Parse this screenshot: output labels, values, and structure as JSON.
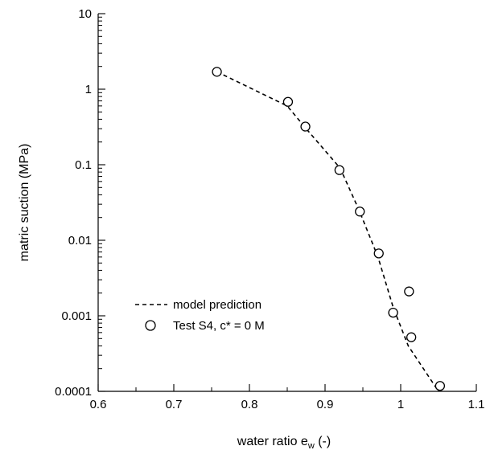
{
  "chart_data": {
    "type": "scatter",
    "xlabel": "water ratio e",
    "xlabel_subscript": "w",
    "xlabel_suffix": " (-)",
    "ylabel": "matric suction (MPa)",
    "xlim": [
      0.6,
      1.1
    ],
    "ylim": [
      0.0001,
      10
    ],
    "yscale": "log",
    "grid": false,
    "legend_position": "lower-left",
    "x_ticks": [
      "0.6",
      "0.7",
      "0.8",
      "0.9",
      "1",
      "1.1"
    ],
    "x_tick_values": [
      0.6,
      0.7,
      0.8,
      0.9,
      1.0,
      1.1
    ],
    "y_ticks": [
      "0.0001",
      "0.001",
      "0.01",
      "0.1",
      "1",
      "10"
    ],
    "y_tick_values": [
      0.0001,
      0.001,
      0.01,
      0.1,
      1,
      10
    ],
    "series": [
      {
        "name": "model prediction",
        "style": "dashed-line",
        "color": "#000000",
        "x": [
          0.757,
          0.85,
          0.875,
          0.92,
          0.945,
          0.97,
          0.99,
          1.01,
          1.05
        ],
        "y": [
          1.7,
          0.6,
          0.3,
          0.09,
          0.025,
          0.006,
          0.0013,
          0.0004,
          0.0001
        ]
      },
      {
        "name": "Test S4, c* = 0 M",
        "style": "open-circle",
        "color": "#000000",
        "x": [
          0.757,
          0.851,
          0.874,
          0.919,
          0.946,
          0.971,
          0.99,
          1.011,
          1.014,
          1.052
        ],
        "y": [
          1.7,
          0.68,
          0.32,
          0.085,
          0.024,
          0.0067,
          0.0011,
          0.0021,
          0.00052,
          0.000118
        ]
      }
    ]
  }
}
